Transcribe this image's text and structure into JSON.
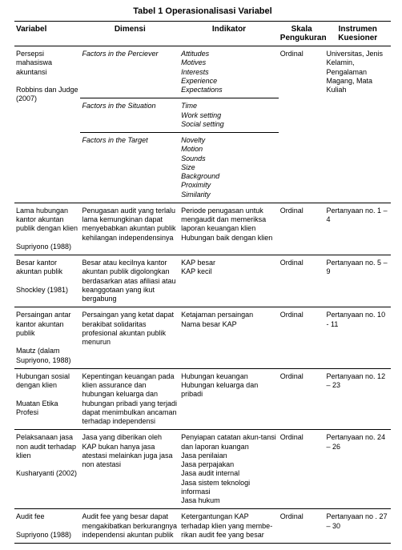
{
  "title": "Tabel 1 Operasionalisasi Variabel",
  "headers": {
    "variabel": "Variabel",
    "dimensi": "Dimensi",
    "indikator": "Indikator",
    "skala": "Skala Pengukuran",
    "instrumen": "Instrumen Kuesioner"
  },
  "row1": {
    "variabel": "Persepsi mahasiswa akuntansi\n\nRobbins dan Judge (2007)",
    "dim1": "Factors in the Perciever",
    "ind1": "Attitudes\nMotives\nInterests\nExperience\nExpectations",
    "dim2": "Factors in the Situation",
    "ind2": "Time\nWork setting\nSocial setting",
    "dim3": "Factors in the Target",
    "ind3": "Novelty\nMotion\nSounds\nSize\nBackground\nProximity\nSimilarity",
    "skala": "Ordinal",
    "instrumen": "Universitas, Jenis Kelamin, Pengalaman Magang, Mata Kuliah"
  },
  "row2": {
    "variabel": "Lama hubungan kantor akuntan publik dengan klien\n\nSupriyono (1988)",
    "dimensi": "Penugasan audit yang terlalu lama kemungkinan dapat menyebabkan akuntan publik kehilangan independensinya",
    "indikator": "Periode penugasan untuk mengaudit dan memeriksa laporan keuangan klien\nHubungan baik dengan klien",
    "skala": "Ordinal",
    "instrumen": "Pertanyaan no. 1 – 4"
  },
  "row3": {
    "variabel": "Besar kantor akuntan publik\n\nShockley (1981)",
    "dimensi": "Besar atau kecilnya kantor akuntan publik digolongkan berdasarkan atas afiliasi atau keanggotaan yang ikut bergabung",
    "indikator": "KAP besar\nKAP kecil",
    "skala": "Ordinal",
    "instrumen": "Pertanyaan no. 5 – 9"
  },
  "row4": {
    "variabel": "Persaingan antar kantor akuntan publik\n\nMautz (dalam Supriyono, 1988)",
    "dimensi": "Persaingan yang ketat dapat berakibat solidaritas profesional akuntan publik menurun",
    "indikator": "Ketajaman persaingan\nNama besar KAP",
    "skala": "Ordinal",
    "instrumen": "Pertanyaan no. 10 - 11"
  },
  "row5": {
    "variabel": "Hubungan sosial dengan klien\n\nMuatan Etika Profesi",
    "dimensi": "Kepentingan keuangan pada klien assurance dan hubungan keluarga dan hubungan pribadi yang terjadi dapat menimbulkan ancaman terhadap independensi",
    "indikator": "Hubungan keuangan\nHubungan keluarga dan pribadi",
    "skala": "Ordinal",
    "instrumen": "Pertanyaan no. 12 – 23"
  },
  "row6": {
    "variabel": "Pelaksanaan jasa non audit terhadap klien\n\nKusharyanti (2002)",
    "dimensi": "Jasa yang diberikan oleh KAP bukan hanya jasa atestasi melainkan juga jasa non atestasi",
    "indikator": "Penyiapan catatan akun-tansi dan laporan kuangan\nJasa penilaian\nJasa perpajakan\nJasa audit internal\nJasa sistem teknologi informasi\nJasa hukum",
    "skala": "Ordinal",
    "instrumen": "Pertanyaan no. 24 – 26"
  },
  "row7": {
    "variabel": "Audit fee\n\nSupriyono (1988)",
    "dimensi": "Audit fee yang besar dapat mengakibatkan berkurangnya independensi akuntan publik",
    "indikator": "Ketergantungan KAP terhadap klien yang membe-rikan audit fee yang besar",
    "skala": "Ordinal",
    "instrumen": "Pertanyaan no . 27 – 30"
  }
}
